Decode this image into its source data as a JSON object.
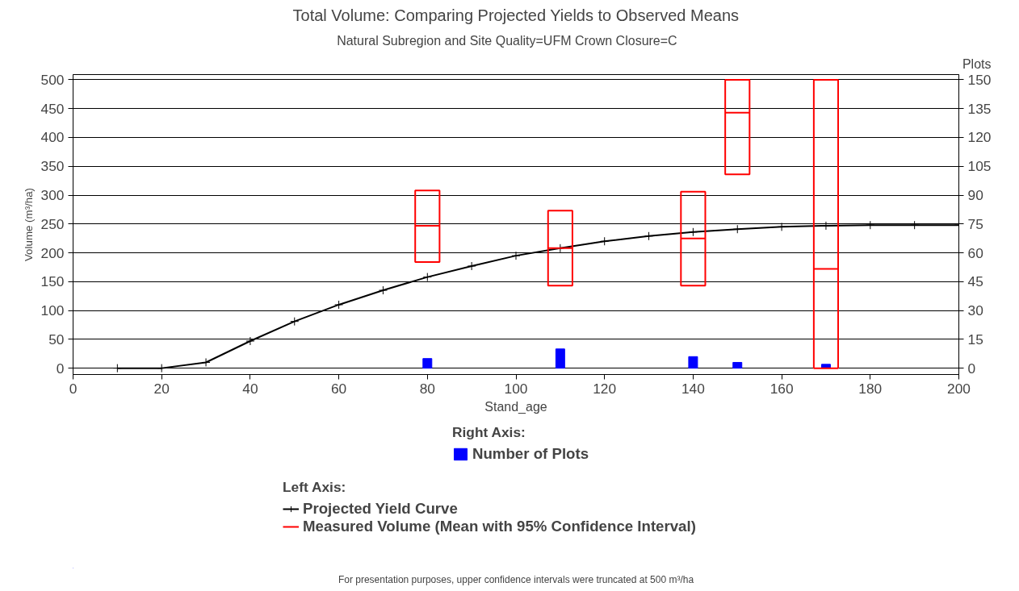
{
  "chart_data": {
    "type": "line",
    "title": "Total Volume: Comparing Projected Yields to Observed Means",
    "subtitle": "Natural Subregion and Site Quality=UFM      Crown Closure=C",
    "xlabel": "Stand_age",
    "ylabel": "Volume (m³/ha)",
    "y2label": "Plots",
    "xlim": [
      0,
      200
    ],
    "xticks": [
      0,
      20,
      40,
      60,
      80,
      100,
      120,
      140,
      160,
      180,
      200
    ],
    "ylim": [
      -11,
      509
    ],
    "yticks": [
      0,
      50,
      100,
      150,
      200,
      250,
      300,
      350,
      400,
      450,
      500
    ],
    "y2lim": [
      -3.3,
      152.7
    ],
    "y2ticks": [
      0,
      15,
      30,
      45,
      60,
      75,
      90,
      105,
      120,
      135,
      150
    ],
    "grid": "y",
    "legend": "bottom",
    "annotations": [
      "Right Axis:",
      "Left Axis:",
      "For presentation purposes, upper confidence intervals were truncated at 500 m³/ha"
    ],
    "series": [
      {
        "name": "Number of Plots",
        "type": "bar",
        "axis": "y2",
        "color": "#0000ff",
        "x": [
          80,
          110,
          140,
          150,
          170
        ],
        "values": [
          5,
          10,
          6,
          3,
          2
        ]
      },
      {
        "name": "Projected Yield Curve",
        "type": "line",
        "color": "#000000",
        "marker": "cross",
        "line_style": "solid",
        "x": [
          10,
          20,
          30,
          40,
          50,
          60,
          70,
          80,
          90,
          100,
          110,
          120,
          130,
          140,
          150,
          160,
          170,
          180,
          190,
          200
        ],
        "values": [
          0,
          0,
          10,
          47,
          81,
          110,
          135,
          158,
          177,
          195,
          208,
          220,
          229,
          236,
          241,
          245,
          247,
          248,
          248,
          248
        ]
      },
      {
        "name": "Measured Volume (Mean with 95% Confidence Interval)",
        "type": "box",
        "color": "#ff0000",
        "x": [
          80,
          110,
          140,
          150,
          170
        ],
        "boxes": [
          {
            "low": 184,
            "q1": 184,
            "median": 247,
            "q3": 308,
            "high": 308
          },
          {
            "low": 143,
            "q1": 143,
            "median": 208,
            "q3": 273,
            "high": 273
          },
          {
            "low": 143,
            "q1": 143,
            "median": 225,
            "q3": 306,
            "high": 306
          },
          {
            "low": 336,
            "q1": 336,
            "median": 443,
            "q3": 500,
            "high": 500
          },
          {
            "low": 0,
            "q1": 0,
            "median": 172,
            "q3": 500,
            "high": 500
          }
        ]
      }
    ]
  }
}
